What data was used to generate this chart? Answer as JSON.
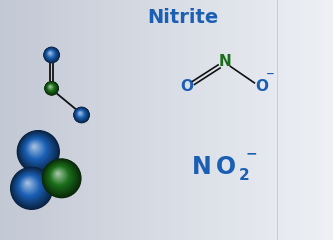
{
  "title": "Nitrite",
  "title_color": "#1a5fb4",
  "title_fontsize": 14,
  "bg_color_left": "#c8cdd6",
  "bg_color_right": "#e8ecf2",
  "formula_color": "#1a5fb4",
  "atom_N_color": "#1a6e1a",
  "atom_O_color": "#1a5fb4",
  "struct_charge": "−",
  "formula_sup": "−",
  "xlim": [
    0,
    10
  ],
  "ylim": [
    0,
    7.2
  ]
}
